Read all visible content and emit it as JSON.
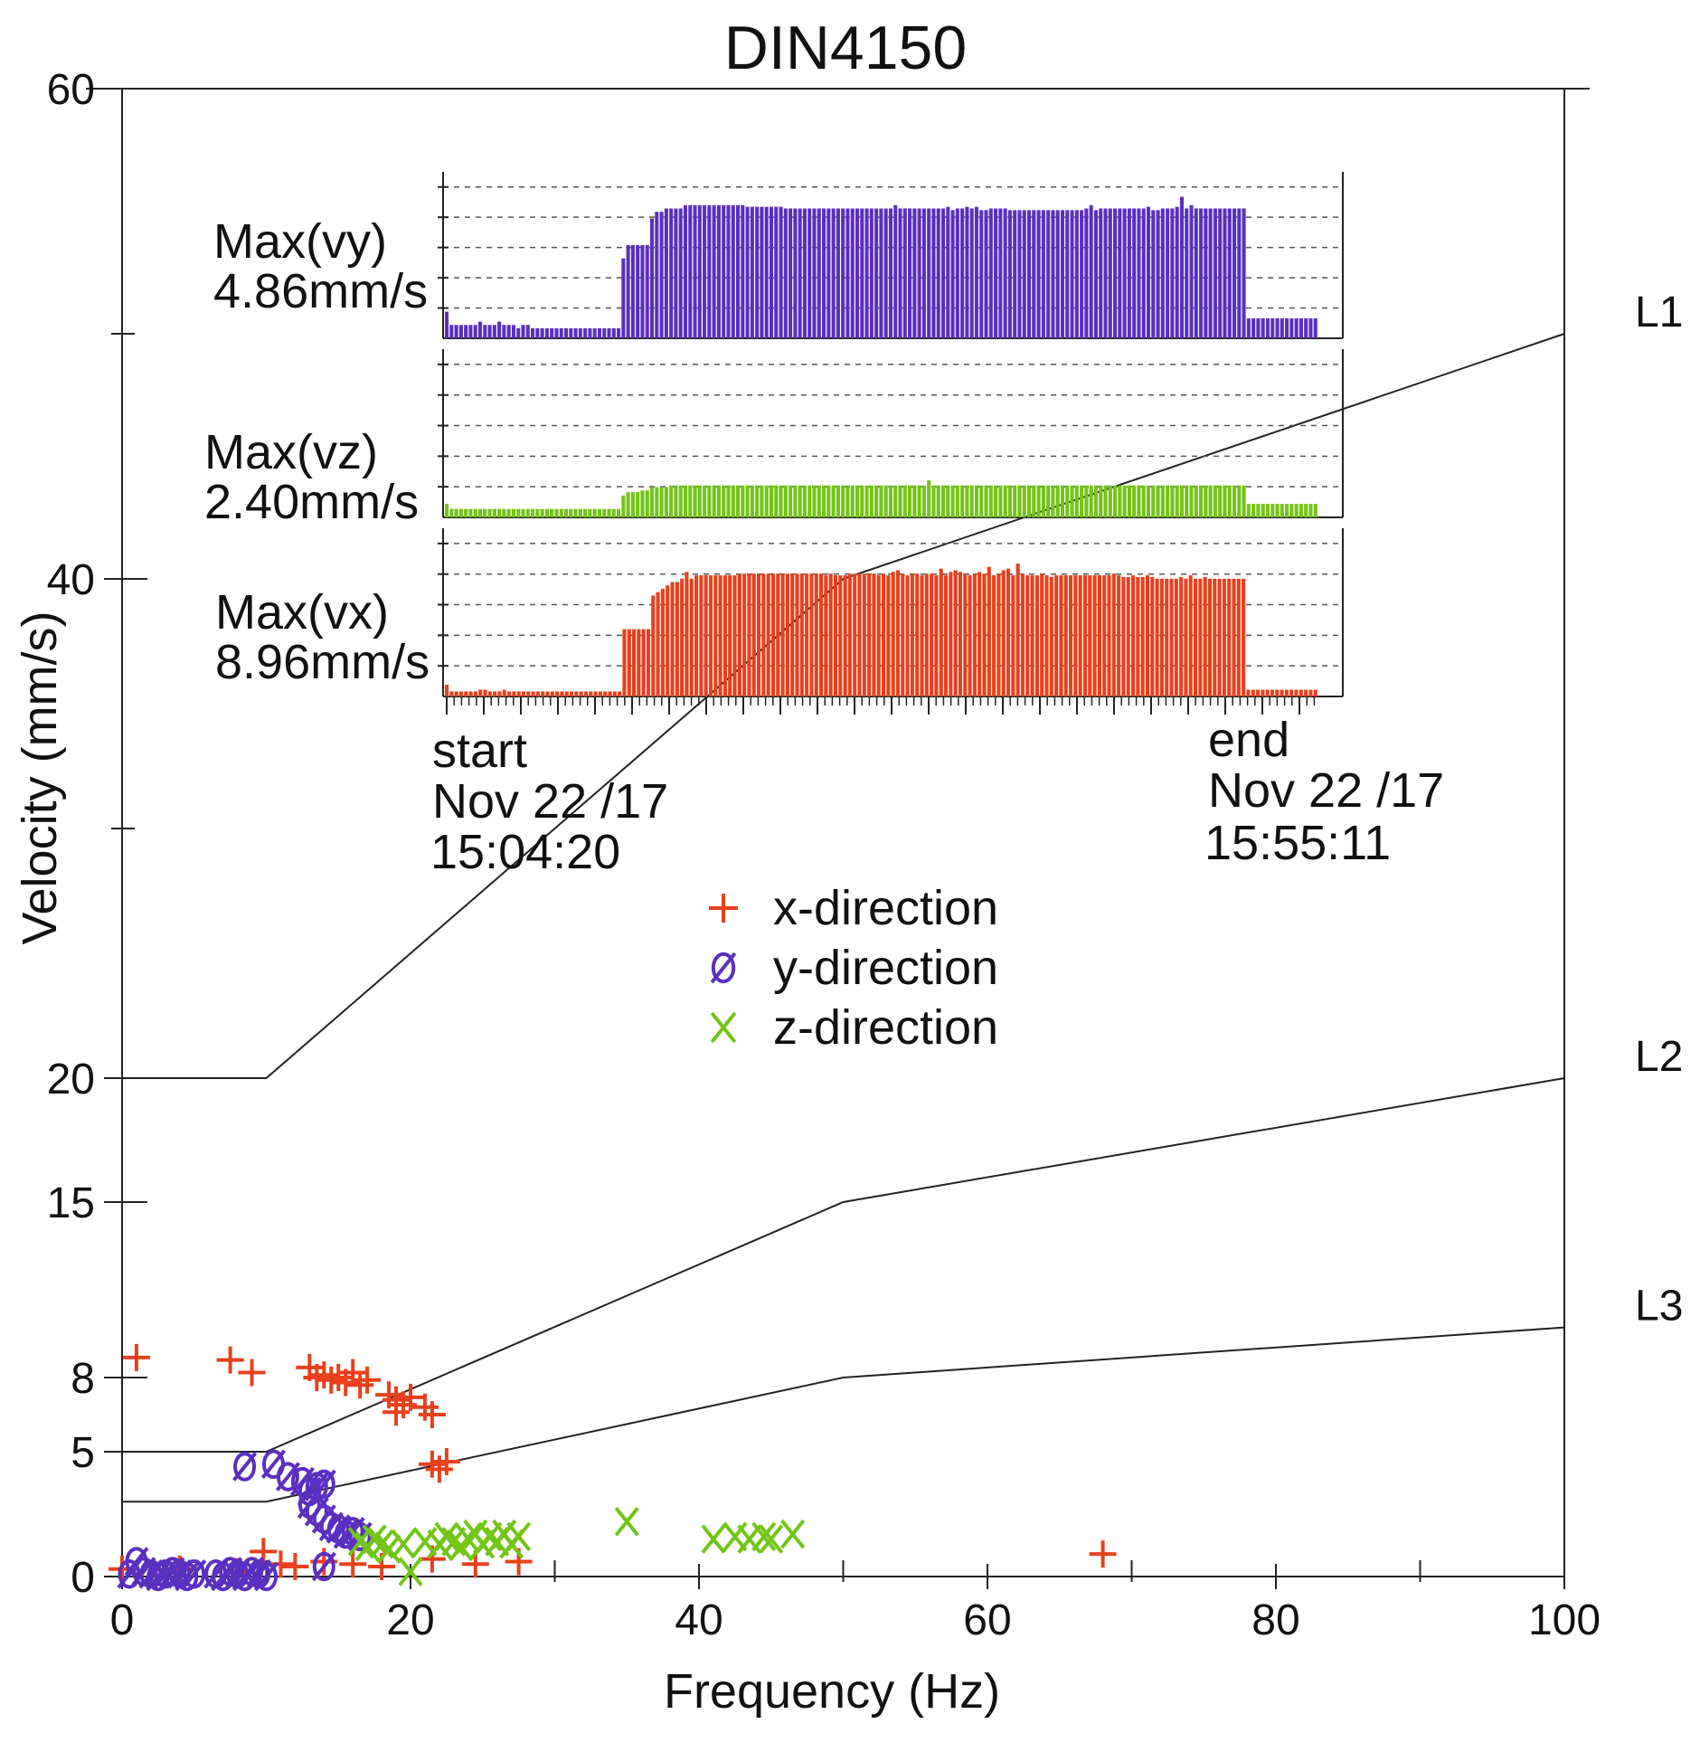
{
  "chart_data": {
    "type": "scatter",
    "title": "DIN4150",
    "xlabel": "Frequency (Hz)",
    "ylabel": "Velocity (mm/s)",
    "xlim": [
      0,
      100
    ],
    "ylim": [
      0,
      60
    ],
    "x_ticks": [
      "0",
      "20",
      "40",
      "60",
      "80",
      "100"
    ],
    "y_ticks": [
      {
        "value": 0,
        "label": "0"
      },
      {
        "value": 5,
        "label": "5"
      },
      {
        "value": 8,
        "label": "8"
      },
      {
        "value": 15,
        "label": "15"
      },
      {
        "value": 20,
        "label": "20"
      },
      {
        "value": 40,
        "label": "40"
      },
      {
        "value": 60,
        "label": "60"
      }
    ],
    "limit_lines": [
      {
        "name": "L1",
        "points": [
          [
            0,
            20
          ],
          [
            10,
            20
          ],
          [
            50,
            40
          ],
          [
            100,
            50
          ]
        ]
      },
      {
        "name": "L2",
        "points": [
          [
            0,
            5
          ],
          [
            10,
            5
          ],
          [
            50,
            15
          ],
          [
            100,
            20
          ]
        ]
      },
      {
        "name": "L3",
        "points": [
          [
            0,
            3
          ],
          [
            10,
            3
          ],
          [
            50,
            8
          ],
          [
            100,
            10
          ]
        ]
      }
    ],
    "series": [
      {
        "name": "x-direction",
        "marker": "+",
        "color": "#e8401c",
        "points": [
          [
            1,
            8.8
          ],
          [
            7.5,
            8.7
          ],
          [
            9,
            8.2
          ],
          [
            13,
            8.4
          ],
          [
            13.5,
            8.0
          ],
          [
            14,
            8.1
          ],
          [
            14.5,
            7.9
          ],
          [
            15,
            8.0
          ],
          [
            15.5,
            7.8
          ],
          [
            16,
            8.2
          ],
          [
            16.5,
            7.7
          ],
          [
            17,
            7.9
          ],
          [
            18.5,
            7.3
          ],
          [
            19,
            7.1
          ],
          [
            19.5,
            6.9
          ],
          [
            20,
            7.2
          ],
          [
            21,
            6.8
          ],
          [
            21.5,
            6.5
          ],
          [
            19,
            6.6
          ],
          [
            21.5,
            4.5
          ],
          [
            22,
            4.3
          ],
          [
            22.5,
            4.6
          ],
          [
            9.8,
            1.0
          ],
          [
            11,
            0.5
          ],
          [
            12,
            0.4
          ],
          [
            14,
            0.6
          ],
          [
            16,
            0.5
          ],
          [
            18,
            0.4
          ],
          [
            21.5,
            0.7
          ],
          [
            24.5,
            0.5
          ],
          [
            27.5,
            0.6
          ],
          [
            68,
            0.9
          ],
          [
            0,
            0.3
          ],
          [
            4,
            0.3
          ],
          [
            8,
            0.2
          ]
        ]
      },
      {
        "name": "y-direction",
        "marker": "ø",
        "color": "#5b2fc0",
        "points": [
          [
            8.5,
            4.4
          ],
          [
            10.5,
            4.5
          ],
          [
            11.5,
            4.0
          ],
          [
            12.5,
            3.8
          ],
          [
            13,
            3.4
          ],
          [
            13.5,
            3.6
          ],
          [
            14,
            3.7
          ],
          [
            13,
            2.9
          ],
          [
            13.5,
            2.6
          ],
          [
            14,
            2.3
          ],
          [
            14.5,
            2.0
          ],
          [
            15,
            1.9
          ],
          [
            15.5,
            1.7
          ],
          [
            16,
            1.8
          ],
          [
            16.5,
            1.6
          ],
          [
            14,
            0.4
          ],
          [
            1,
            0.6
          ],
          [
            0.5,
            0.1
          ],
          [
            1.5,
            0.2
          ],
          [
            2,
            0.1
          ],
          [
            2.5,
            0.0
          ],
          [
            3,
            0.1
          ],
          [
            3.5,
            0.2
          ],
          [
            4,
            0.1
          ],
          [
            4.5,
            0.0
          ],
          [
            5,
            0.1
          ],
          [
            6.5,
            0.1
          ],
          [
            7,
            0.0
          ],
          [
            7.5,
            0.2
          ],
          [
            8,
            0.1
          ],
          [
            8.5,
            0.0
          ],
          [
            9,
            0.2
          ],
          [
            9.5,
            0.1
          ],
          [
            10,
            0.0
          ]
        ]
      },
      {
        "name": "z-direction",
        "marker": "x",
        "color": "#72c416",
        "points": [
          [
            16.5,
            1.4
          ],
          [
            17,
            1.2
          ],
          [
            17.5,
            1.5
          ],
          [
            18,
            1.3
          ],
          [
            18.5,
            1.1
          ],
          [
            19.5,
            1.3
          ],
          [
            20,
            0.2
          ],
          [
            21,
            1.4
          ],
          [
            22,
            1.3
          ],
          [
            22.5,
            1.6
          ],
          [
            23,
            1.4
          ],
          [
            23.5,
            1.2
          ],
          [
            24,
            1.5
          ],
          [
            24.5,
            1.7
          ],
          [
            25,
            1.3
          ],
          [
            25.5,
            1.6
          ],
          [
            26,
            1.4
          ],
          [
            26.5,
            1.7
          ],
          [
            27,
            1.3
          ],
          [
            27.5,
            1.6
          ],
          [
            35,
            2.2
          ],
          [
            41,
            1.5
          ],
          [
            42.5,
            1.6
          ],
          [
            43.5,
            1.5
          ],
          [
            44.5,
            1.6
          ],
          [
            45,
            1.5
          ],
          [
            46.5,
            1.7
          ]
        ]
      }
    ],
    "legend": {
      "placement": "center",
      "entries": [
        {
          "marker": "+",
          "label": "x-direction"
        },
        {
          "marker": "ø",
          "label": "y-direction"
        },
        {
          "marker": "x",
          "label": "z-direction"
        }
      ]
    },
    "inset": {
      "start_label": "start",
      "start_date": "Nov 22 /17",
      "start_time": "15:04:20",
      "end_label": "end",
      "end_date": "Nov 22 /17",
      "end_time": "15:55:11",
      "panels": [
        {
          "name": "vy",
          "label_line1": "Max(vy)",
          "label_line2": "4.86mm/s",
          "color": "#5b2fc0",
          "values": [
            0.16,
            0.08,
            0.08,
            0.08,
            0.08,
            0.08,
            0.08,
            0.1,
            0.08,
            0.08,
            0.08,
            0.1,
            0.08,
            0.08,
            0.08,
            0.06,
            0.08,
            0.08,
            0.06,
            0.06,
            0.06,
            0.06,
            0.06,
            0.06,
            0.06,
            0.06,
            0.06,
            0.06,
            0.06,
            0.06,
            0.06,
            0.06,
            0.06,
            0.06,
            0.06,
            0.06,
            0.06,
            0.48,
            0.56,
            0.56,
            0.56,
            0.56,
            0.56,
            0.72,
            0.76,
            0.76,
            0.78,
            0.78,
            0.78,
            0.78,
            0.8,
            0.8,
            0.8,
            0.8,
            0.8,
            0.8,
            0.8,
            0.8,
            0.8,
            0.8,
            0.8,
            0.8,
            0.8,
            0.79,
            0.79,
            0.79,
            0.79,
            0.79,
            0.79,
            0.79,
            0.79,
            0.78,
            0.78,
            0.78,
            0.78,
            0.78,
            0.78,
            0.78,
            0.78,
            0.78,
            0.78,
            0.78,
            0.78,
            0.78,
            0.78,
            0.78,
            0.78,
            0.78,
            0.78,
            0.78,
            0.78,
            0.78,
            0.78,
            0.78,
            0.8,
            0.78,
            0.78,
            0.78,
            0.78,
            0.78,
            0.78,
            0.78,
            0.78,
            0.78,
            0.78,
            0.79,
            0.77,
            0.78,
            0.78,
            0.79,
            0.78,
            0.79,
            0.77,
            0.77,
            0.78,
            0.78,
            0.78,
            0.78,
            0.77,
            0.77,
            0.77,
            0.77,
            0.77,
            0.77,
            0.77,
            0.77,
            0.77,
            0.77,
            0.77,
            0.77,
            0.77,
            0.77,
            0.77,
            0.77,
            0.78,
            0.8,
            0.77,
            0.78,
            0.78,
            0.78,
            0.78,
            0.78,
            0.78,
            0.78,
            0.78,
            0.78,
            0.78,
            0.79,
            0.77,
            0.77,
            0.78,
            0.78,
            0.78,
            0.79,
            0.85,
            0.78,
            0.8,
            0.78,
            0.78,
            0.78,
            0.78,
            0.78,
            0.78,
            0.78,
            0.78,
            0.78,
            0.78,
            0.78,
            0.12,
            0.12,
            0.12,
            0.12,
            0.12,
            0.12,
            0.12,
            0.12,
            0.12,
            0.12,
            0.12,
            0.12,
            0.12,
            0.12,
            0.12
          ]
        },
        {
          "name": "vz",
          "label_line1": "Max(vz)",
          "label_line2": "2.40mm/s",
          "color": "#72c416",
          "values": [
            0.08,
            0.05,
            0.05,
            0.05,
            0.05,
            0.05,
            0.05,
            0.05,
            0.05,
            0.05,
            0.05,
            0.05,
            0.05,
            0.05,
            0.05,
            0.05,
            0.05,
            0.05,
            0.05,
            0.05,
            0.05,
            0.05,
            0.05,
            0.05,
            0.05,
            0.05,
            0.05,
            0.05,
            0.05,
            0.05,
            0.05,
            0.05,
            0.05,
            0.05,
            0.05,
            0.05,
            0.05,
            0.13,
            0.15,
            0.15,
            0.15,
            0.16,
            0.16,
            0.18,
            0.18,
            0.18,
            0.18,
            0.19,
            0.19,
            0.19,
            0.19,
            0.19,
            0.19,
            0.19,
            0.19,
            0.19,
            0.19,
            0.19,
            0.19,
            0.19,
            0.19,
            0.19,
            0.19,
            0.19,
            0.19,
            0.19,
            0.19,
            0.19,
            0.19,
            0.19,
            0.19,
            0.19,
            0.19,
            0.19,
            0.19,
            0.19,
            0.19,
            0.19,
            0.19,
            0.19,
            0.19,
            0.19,
            0.19,
            0.19,
            0.19,
            0.19,
            0.19,
            0.19,
            0.19,
            0.19,
            0.19,
            0.19,
            0.19,
            0.19,
            0.19,
            0.19,
            0.19,
            0.19,
            0.19,
            0.19,
            0.19,
            0.22,
            0.19,
            0.19,
            0.19,
            0.19,
            0.19,
            0.19,
            0.19,
            0.19,
            0.19,
            0.19,
            0.19,
            0.19,
            0.19,
            0.19,
            0.19,
            0.19,
            0.19,
            0.19,
            0.19,
            0.19,
            0.19,
            0.19,
            0.19,
            0.19,
            0.19,
            0.19,
            0.19,
            0.19,
            0.19,
            0.19,
            0.19,
            0.19,
            0.19,
            0.19,
            0.19,
            0.19,
            0.19,
            0.19,
            0.19,
            0.19,
            0.19,
            0.19,
            0.19,
            0.19,
            0.19,
            0.19,
            0.19,
            0.19,
            0.19,
            0.19,
            0.19,
            0.19,
            0.19,
            0.19,
            0.19,
            0.19,
            0.19,
            0.19,
            0.19,
            0.19,
            0.19,
            0.19,
            0.19,
            0.19,
            0.19,
            0.19,
            0.08,
            0.08,
            0.08,
            0.08,
            0.08,
            0.08,
            0.08,
            0.08,
            0.08,
            0.08,
            0.08,
            0.08,
            0.08,
            0.08,
            0.08
          ]
        },
        {
          "name": "vx",
          "label_line1": "Max(vx)",
          "label_line2": "8.96mm/s",
          "color": "#e8401c",
          "values": [
            0.07,
            0.03,
            0.03,
            0.03,
            0.03,
            0.03,
            0.03,
            0.04,
            0.04,
            0.03,
            0.03,
            0.03,
            0.04,
            0.03,
            0.03,
            0.03,
            0.03,
            0.03,
            0.03,
            0.03,
            0.03,
            0.03,
            0.03,
            0.03,
            0.03,
            0.03,
            0.03,
            0.03,
            0.03,
            0.03,
            0.03,
            0.03,
            0.03,
            0.03,
            0.03,
            0.03,
            0.03,
            0.4,
            0.4,
            0.4,
            0.4,
            0.4,
            0.4,
            0.6,
            0.62,
            0.64,
            0.66,
            0.68,
            0.68,
            0.7,
            0.74,
            0.7,
            0.72,
            0.72,
            0.72,
            0.72,
            0.72,
            0.72,
            0.72,
            0.72,
            0.72,
            0.73,
            0.73,
            0.73,
            0.73,
            0.73,
            0.73,
            0.73,
            0.73,
            0.73,
            0.73,
            0.73,
            0.73,
            0.73,
            0.73,
            0.73,
            0.73,
            0.73,
            0.73,
            0.72,
            0.73,
            0.72,
            0.72,
            0.72,
            0.73,
            0.73,
            0.73,
            0.73,
            0.73,
            0.73,
            0.72,
            0.73,
            0.72,
            0.74,
            0.75,
            0.73,
            0.72,
            0.73,
            0.73,
            0.72,
            0.73,
            0.73,
            0.72,
            0.76,
            0.72,
            0.74,
            0.75,
            0.74,
            0.73,
            0.72,
            0.73,
            0.74,
            0.73,
            0.77,
            0.72,
            0.73,
            0.75,
            0.76,
            0.72,
            0.79,
            0.73,
            0.72,
            0.72,
            0.72,
            0.73,
            0.72,
            0.71,
            0.72,
            0.72,
            0.72,
            0.72,
            0.72,
            0.72,
            0.72,
            0.72,
            0.72,
            0.72,
            0.72,
            0.72,
            0.73,
            0.72,
            0.71,
            0.71,
            0.72,
            0.71,
            0.71,
            0.72,
            0.71,
            0.7,
            0.7,
            0.7,
            0.7,
            0.7,
            0.71,
            0.7,
            0.72,
            0.7,
            0.7,
            0.71,
            0.7,
            0.7,
            0.7,
            0.7,
            0.7,
            0.7,
            0.7,
            0.7,
            0.04,
            0.04,
            0.04,
            0.04,
            0.04,
            0.04,
            0.04,
            0.04,
            0.04,
            0.04,
            0.04,
            0.04,
            0.04,
            0.04,
            0.04
          ]
        }
      ]
    }
  }
}
